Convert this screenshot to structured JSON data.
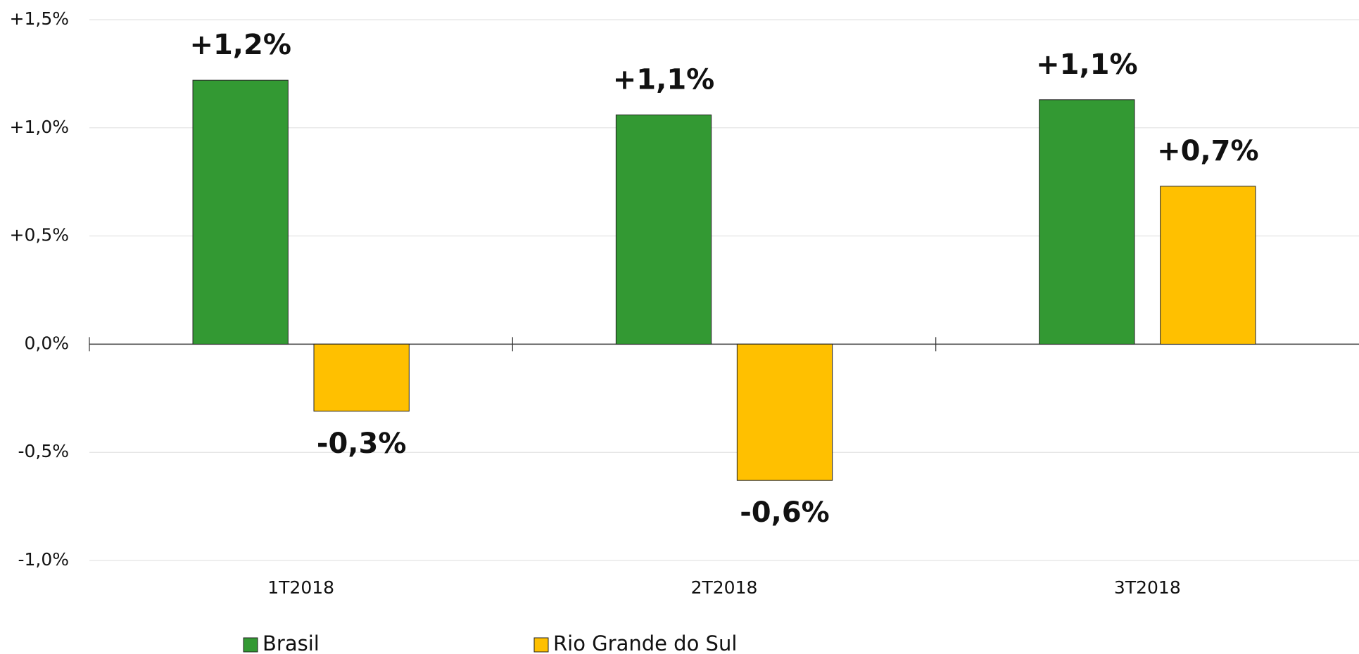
{
  "chart_data": {
    "type": "bar",
    "categories": [
      "1T2018",
      "2T2018",
      "3T2018"
    ],
    "series": [
      {
        "name": "Brasil",
        "color": "#339933",
        "values": [
          1.22,
          1.06,
          1.13
        ],
        "value_labels": [
          "+1,2%",
          "+1,1%",
          "+1,1%"
        ]
      },
      {
        "name": "Rio Grande do Sul",
        "color": "#ffc000",
        "values": [
          -0.31,
          -0.63,
          0.73
        ],
        "value_labels": [
          "-0,3%",
          "-0,6%",
          "+0,7%"
        ]
      }
    ],
    "ylim": [
      -1,
      1.5
    ],
    "yticks": [
      {
        "value": -1,
        "label": "-1,0%"
      },
      {
        "value": -0.5,
        "label": "-0,5%"
      },
      {
        "value": 0,
        "label": "0,0%"
      },
      {
        "value": 0.5,
        "label": "+0,5%"
      },
      {
        "value": 1,
        "label": "+1,0%"
      },
      {
        "value": 1.5,
        "label": "+1,5%"
      }
    ],
    "grid": true,
    "legend": "bottom"
  }
}
